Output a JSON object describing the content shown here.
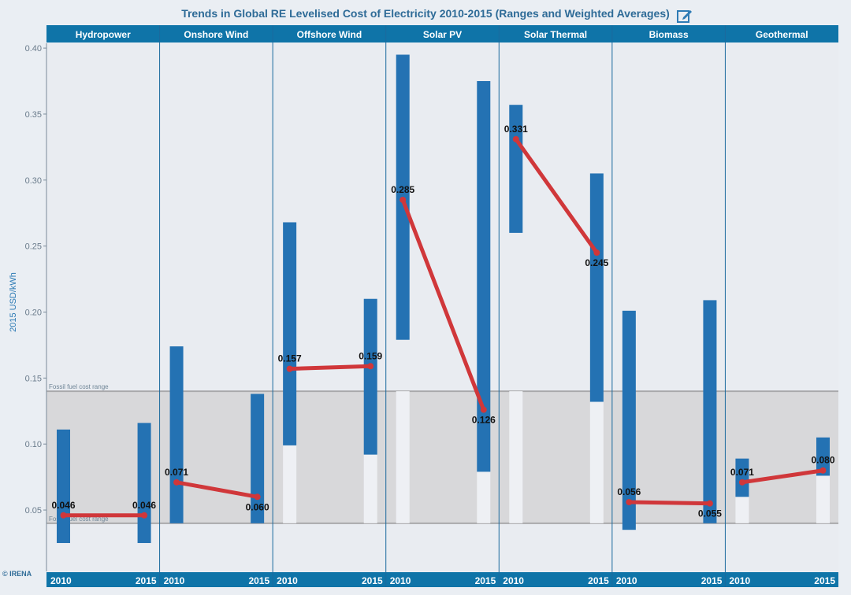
{
  "chart_data": {
    "type": "bar",
    "title": "Trends in Global RE Levelised Cost of Electricity 2010-2015 (Ranges and Weighted Averages)",
    "ylabel": "2015 USD/kWh",
    "ylim": [
      0.0,
      0.4
    ],
    "yticks": [
      "0.05",
      "0.10",
      "0.15",
      "0.20",
      "0.25",
      "0.30",
      "0.35",
      "0.40"
    ],
    "grid": false,
    "fossil_band": {
      "label": "Fossil fuel cost range",
      "low": 0.04,
      "high": 0.14
    },
    "years": [
      "2010",
      "2015"
    ],
    "categories": [
      {
        "name": "Hydropower",
        "ranges": [
          [
            0.025,
            0.111
          ],
          [
            0.025,
            0.116
          ]
        ],
        "averages": [
          0.046,
          0.046
        ],
        "labels": [
          "0.046",
          "0.046"
        ]
      },
      {
        "name": "Onshore Wind",
        "ranges": [
          [
            0.04,
            0.174
          ],
          [
            0.04,
            0.138
          ]
        ],
        "averages": [
          0.071,
          0.06
        ],
        "labels": [
          "0.071",
          "0.060"
        ]
      },
      {
        "name": "Offshore Wind",
        "ranges": [
          [
            0.099,
            0.268
          ],
          [
            0.092,
            0.21
          ]
        ],
        "averages": [
          0.157,
          0.159
        ],
        "labels": [
          "0.157",
          "0.159"
        ]
      },
      {
        "name": "Solar PV",
        "ranges": [
          [
            0.179,
            0.395
          ],
          [
            0.079,
            0.375
          ]
        ],
        "averages": [
          0.285,
          0.126
        ],
        "labels": [
          "0.285",
          "0.126"
        ]
      },
      {
        "name": "Solar Thermal",
        "ranges": [
          [
            0.26,
            0.357
          ],
          [
            0.132,
            0.305
          ]
        ],
        "averages": [
          0.331,
          0.245
        ],
        "labels": [
          "0.331",
          "0.245"
        ]
      },
      {
        "name": "Biomass",
        "ranges": [
          [
            0.035,
            0.201
          ],
          [
            0.04,
            0.209
          ]
        ],
        "averages": [
          0.056,
          0.055
        ],
        "labels": [
          "0.056",
          "0.055"
        ]
      },
      {
        "name": "Geothermal",
        "ranges": [
          [
            0.06,
            0.089
          ],
          [
            0.076,
            0.105
          ]
        ],
        "averages": [
          0.071,
          0.08
        ],
        "labels": [
          "0.071",
          "0.080"
        ]
      }
    ],
    "colors": {
      "bar": "#2472b3",
      "average_line": "#d0373a",
      "header": "#0f74a8",
      "band": "#d8d8da"
    }
  },
  "footer": {
    "copyright": "© IRENA"
  },
  "icons": {
    "edit": "edit-icon"
  }
}
